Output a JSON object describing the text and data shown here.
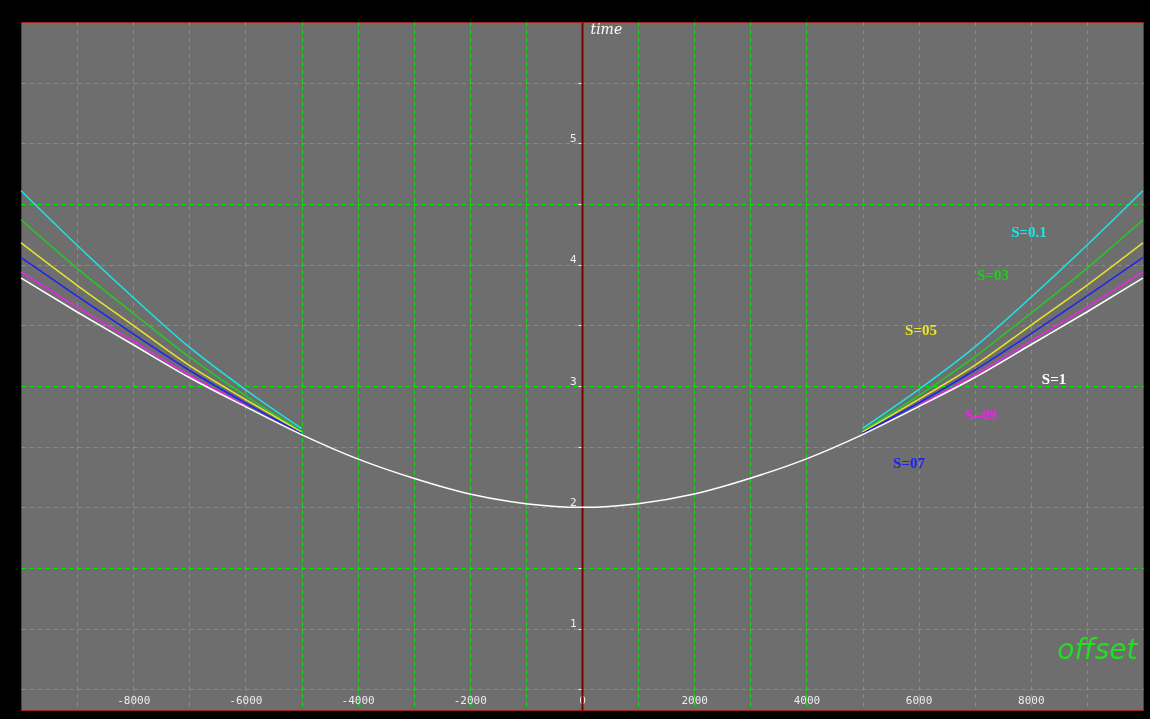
{
  "chart_data": {
    "type": "line",
    "xlabel": "offset",
    "ylabel": "time",
    "x": [
      -10000,
      -9000,
      -8000,
      -7000,
      -6000,
      -5000,
      -4000,
      -3000,
      -2000,
      -1000,
      0,
      1000,
      2000,
      3000,
      4000,
      5000,
      6000,
      7000,
      8000,
      9000,
      10000
    ],
    "series": [
      {
        "name": "S=0.1",
        "color": "#19e6e6",
        "values": [
          4.61,
          4.16,
          3.73,
          3.32,
          2.97,
          2.65,
          null,
          null,
          null,
          null,
          null,
          null,
          null,
          null,
          null,
          2.65,
          2.97,
          3.32,
          3.73,
          4.16,
          4.61
        ]
      },
      {
        "name": "S=03",
        "color": "#22cc22",
        "values": [
          4.37,
          3.97,
          3.6,
          3.24,
          2.92,
          2.63,
          null,
          null,
          null,
          null,
          null,
          null,
          null,
          null,
          null,
          2.63,
          2.92,
          3.24,
          3.6,
          3.97,
          4.37
        ]
      },
      {
        "name": "S=05",
        "color": "#e6e62a",
        "values": [
          4.18,
          3.83,
          3.5,
          3.17,
          2.89,
          2.62,
          null,
          null,
          null,
          null,
          null,
          null,
          null,
          null,
          null,
          2.62,
          2.89,
          3.17,
          3.5,
          3.83,
          4.18
        ]
      },
      {
        "name": "S=07",
        "color": "#2222ee",
        "values": [
          4.06,
          3.74,
          3.43,
          3.13,
          2.86,
          2.61,
          null,
          null,
          null,
          null,
          null,
          null,
          null,
          null,
          null,
          2.61,
          2.86,
          3.13,
          3.43,
          3.74,
          4.06
        ]
      },
      {
        "name": "S=09",
        "color": "#ee22ee",
        "values": [
          3.94,
          3.65,
          3.37,
          3.09,
          2.84,
          null,
          null,
          null,
          null,
          null,
          null,
          null,
          null,
          null,
          null,
          null,
          2.84,
          3.09,
          3.37,
          3.65,
          3.94
        ]
      },
      {
        "name": "S=1",
        "color": "#ffffff",
        "values": [
          3.89,
          3.61,
          3.34,
          3.07,
          2.83,
          2.6,
          2.4,
          2.24,
          2.11,
          2.03,
          2.0,
          2.03,
          2.11,
          2.24,
          2.4,
          2.6,
          2.83,
          3.07,
          3.34,
          3.61,
          3.89
        ]
      }
    ],
    "xlim": [
      -10000,
      10000
    ],
    "xticks": [
      {
        "value": -9000,
        "label": null
      },
      -8000,
      {
        "value": -7000,
        "label": null
      },
      -6000,
      {
        "value": -5000,
        "label": null
      },
      -4000,
      {
        "value": -3000,
        "label": null
      },
      -2000,
      {
        "value": -1000,
        "label": null
      },
      0,
      {
        "value": 1000,
        "label": null
      },
      2000,
      {
        "value": 3000,
        "label": null
      },
      4000,
      {
        "value": 5000,
        "label": null
      },
      6000,
      {
        "value": 7000,
        "label": null
      },
      8000,
      {
        "value": 9000,
        "label": null
      }
    ],
    "ylim": [
      0.33,
      6.0
    ],
    "yticks": [
      {
        "value": 0.5,
        "label": null
      },
      1,
      {
        "value": 1.5,
        "label": null
      },
      2,
      {
        "value": 2.5,
        "label": null
      },
      3,
      {
        "value": 3.5,
        "label": null
      },
      4,
      {
        "value": 4.5,
        "label": null
      },
      5,
      {
        "value": 5.5,
        "label": null
      }
    ],
    "grid": true,
    "marker": "none",
    "line_style": "solid"
  }
}
